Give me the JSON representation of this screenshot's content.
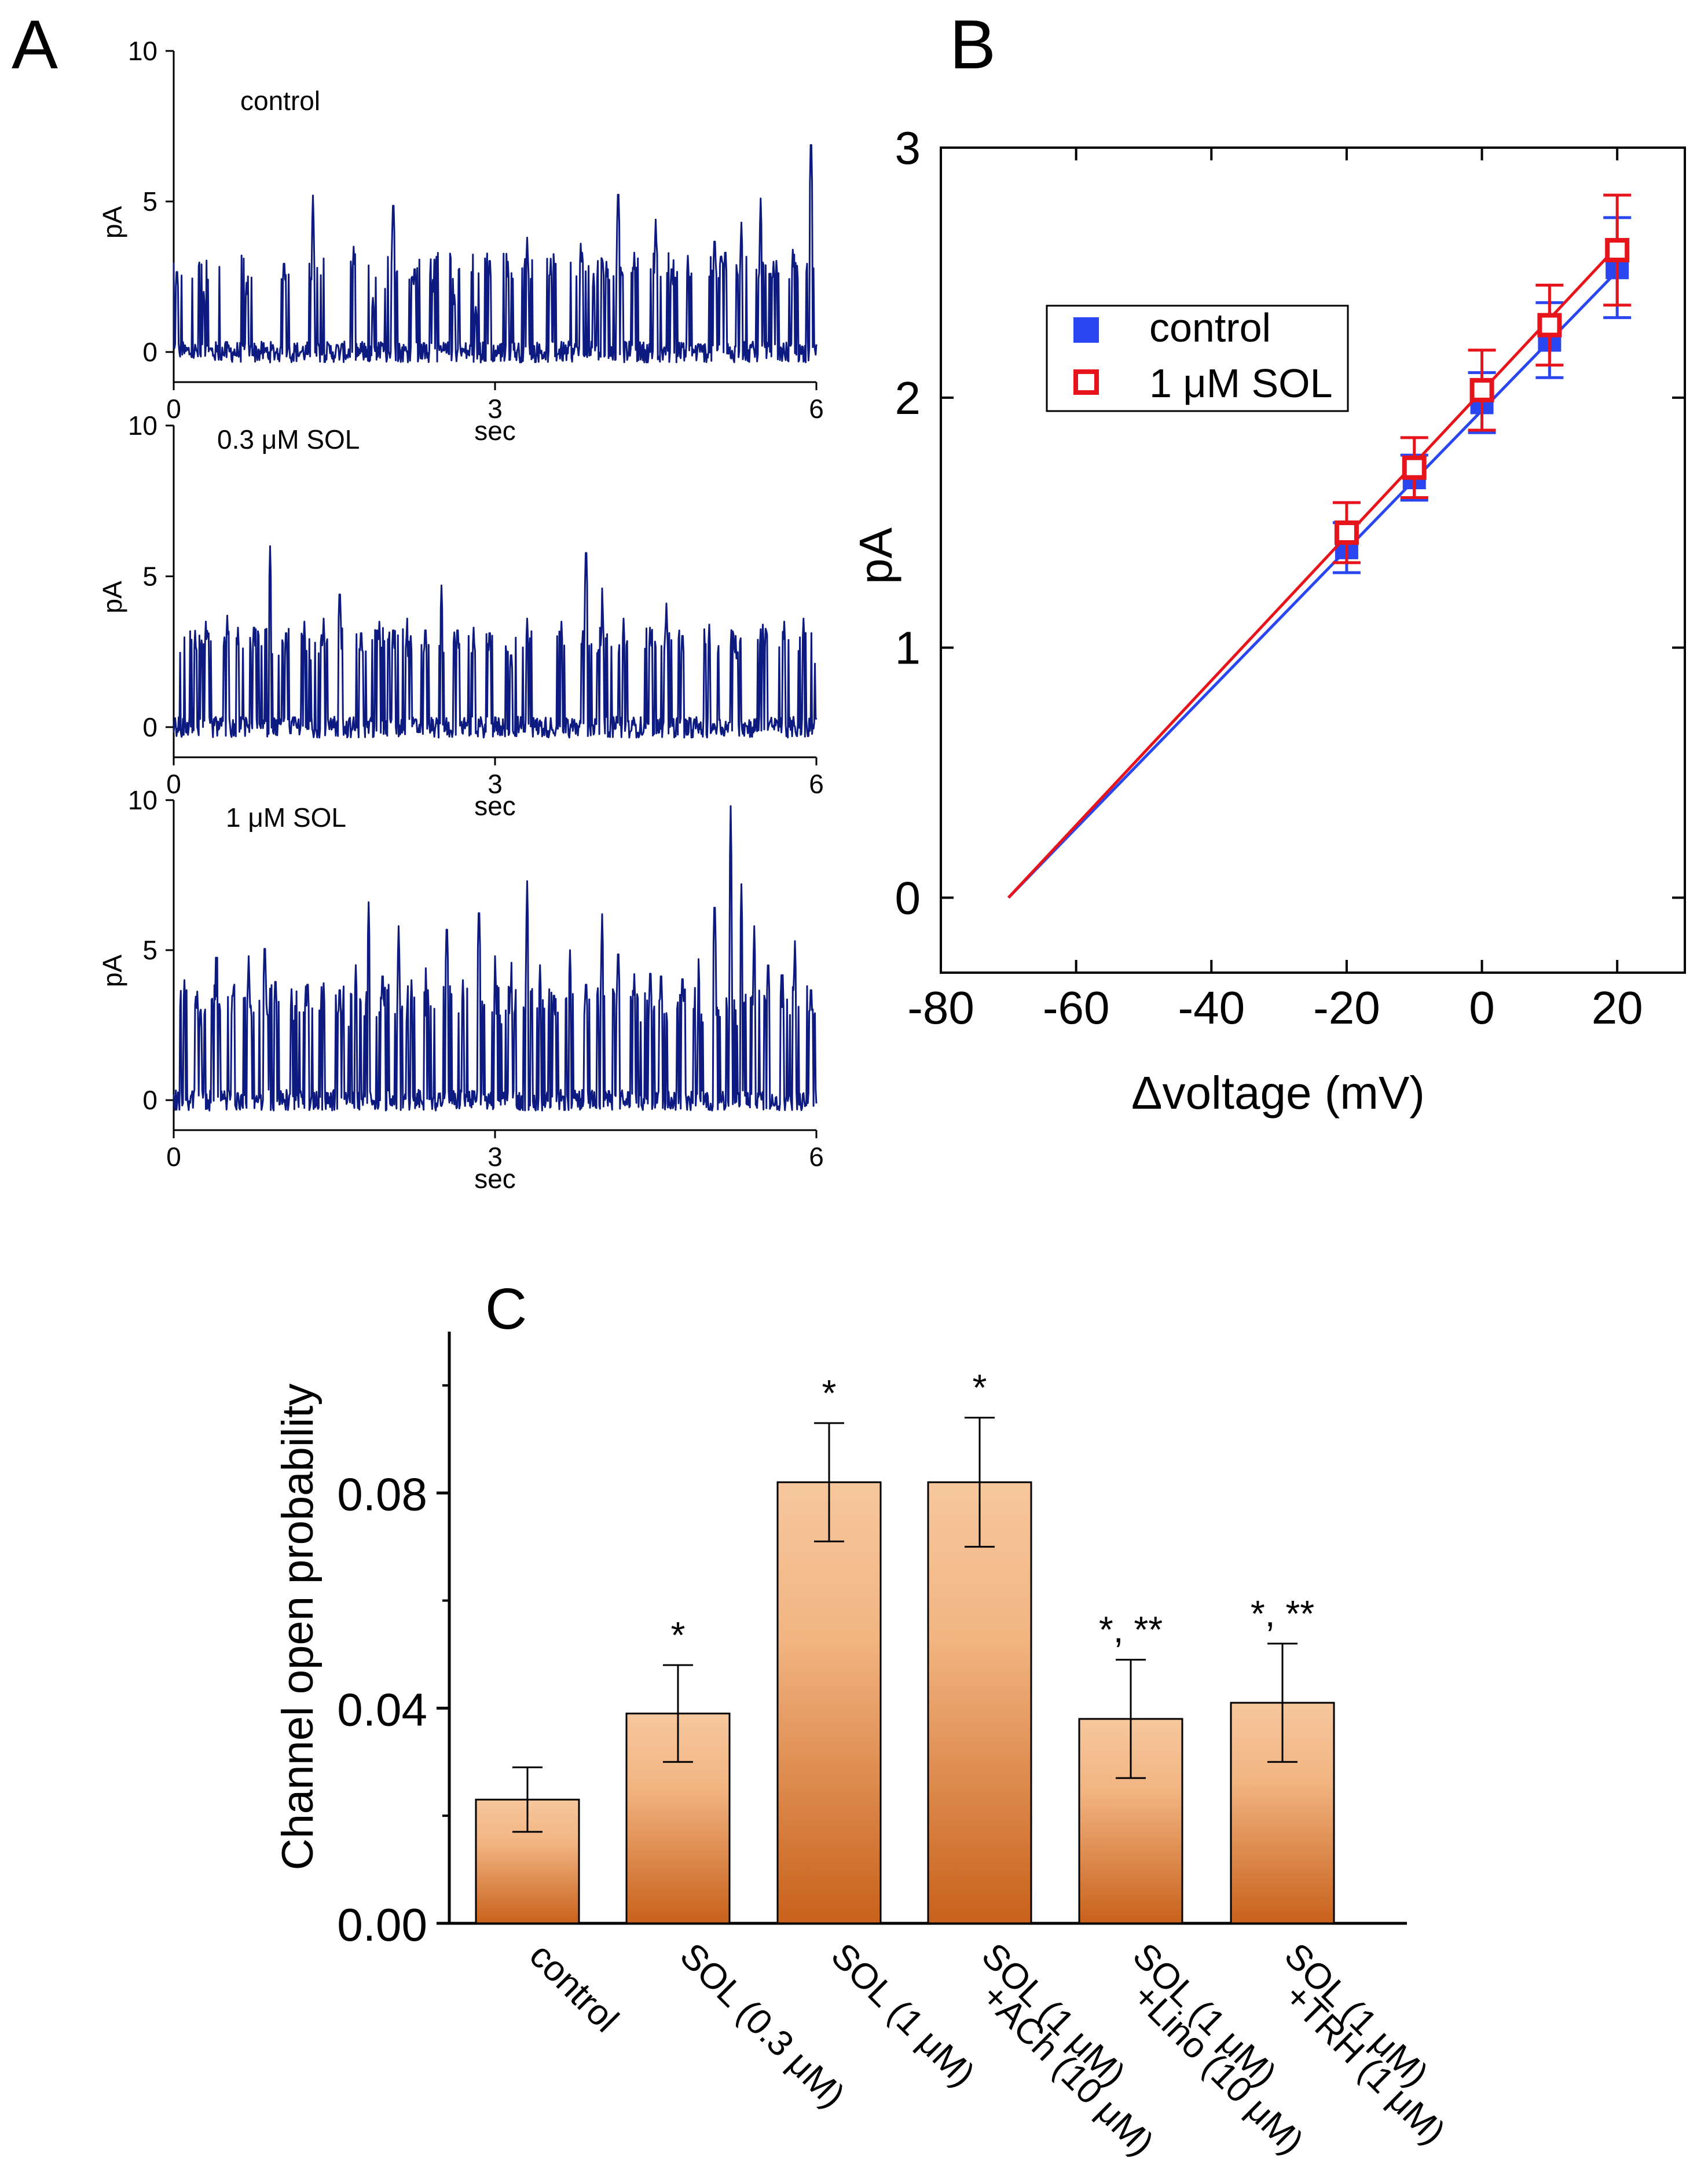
{
  "figure": {
    "panel_labels": {
      "a": "A",
      "b": "B",
      "c": "C"
    }
  },
  "colors": {
    "trace": "#0d1a80",
    "control": "#2a46f0",
    "sol": "#e8141c",
    "bar_top": "#f6c79d",
    "bar_bottom": "#c8611b",
    "axis": "#000000"
  },
  "chart_data": [
    {
      "id": "A",
      "type": "line",
      "subtype": "current-traces",
      "xlabel": "sec",
      "ylabel": "pA",
      "xlim": [
        0,
        6
      ],
      "ylim": [
        -1,
        10
      ],
      "xticks": [
        0,
        3,
        6
      ],
      "yticks": [
        0,
        5,
        10
      ],
      "traces": [
        {
          "label": "control",
          "baseline": 0,
          "open_level": 3,
          "open_probability": 0.023,
          "events": [
            [
              0.03,
              2.9
            ],
            [
              0.28,
              2.0
            ],
            [
              0.68,
              2.3
            ],
            [
              1.03,
              3.2
            ],
            [
              1.3,
              5.2
            ],
            [
              1.68,
              3.5
            ],
            [
              1.86,
              1.8
            ],
            [
              2.05,
              5.3
            ],
            [
              2.25,
              3.0
            ],
            [
              2.42,
              2.4
            ],
            [
              2.62,
              1.9
            ],
            [
              2.82,
              1.5
            ],
            [
              2.95,
              3.3
            ],
            [
              3.12,
              3.0
            ],
            [
              3.3,
              3.8
            ],
            [
              3.52,
              3.1
            ],
            [
              3.8,
              3.6
            ],
            [
              3.92,
              2.6
            ],
            [
              4.04,
              3.0
            ],
            [
              4.15,
              5.7
            ],
            [
              4.3,
              3.3
            ],
            [
              4.5,
              4.4
            ],
            [
              4.65,
              3.0
            ],
            [
              4.8,
              3.2
            ],
            [
              5.05,
              4.0
            ],
            [
              5.15,
              3.6
            ],
            [
              5.3,
              4.3
            ],
            [
              5.48,
              5.1
            ],
            [
              5.6,
              3.0
            ],
            [
              5.78,
              3.4
            ],
            [
              5.95,
              7.5
            ]
          ]
        },
        {
          "label": "0.3 μM SOL",
          "baseline": 0,
          "open_level": 3,
          "open_probability": 0.039,
          "events": [
            [
              0.2,
              3.2
            ],
            [
              0.3,
              3.5
            ],
            [
              0.5,
              3.7
            ],
            [
              0.6,
              3.3
            ],
            [
              0.75,
              3.6
            ],
            [
              0.9,
              6.0
            ],
            [
              1.05,
              3.4
            ],
            [
              1.22,
              3.5
            ],
            [
              1.4,
              3.6
            ],
            [
              1.55,
              4.8
            ],
            [
              1.75,
              3.4
            ],
            [
              1.92,
              3.5
            ],
            [
              2.05,
              3.5
            ],
            [
              2.18,
              3.6
            ],
            [
              2.35,
              3.5
            ],
            [
              2.5,
              4.7
            ],
            [
              2.65,
              3.5
            ],
            [
              2.8,
              3.3
            ],
            [
              2.95,
              3.4
            ],
            [
              3.15,
              2.6
            ],
            [
              3.3,
              3.6
            ],
            [
              3.62,
              3.5
            ],
            [
              3.85,
              6.3
            ],
            [
              4.0,
              4.6
            ],
            [
              4.2,
              3.6
            ],
            [
              4.45,
              3.6
            ],
            [
              4.6,
              4.1
            ],
            [
              4.75,
              3.3
            ],
            [
              5.0,
              3.4
            ],
            [
              5.25,
              3.3
            ],
            [
              5.5,
              3.4
            ],
            [
              5.7,
              3.5
            ],
            [
              5.88,
              3.6
            ]
          ]
        },
        {
          "label": "1 μM SOL",
          "baseline": 0,
          "open_level": 3.5,
          "open_probability": 0.082,
          "events": [
            [
              0.1,
              4.0
            ],
            [
              0.25,
              3.2
            ],
            [
              0.4,
              5.7
            ],
            [
              0.55,
              3.8
            ],
            [
              0.7,
              4.8
            ],
            [
              0.85,
              5.5
            ],
            [
              0.95,
              4.3
            ],
            [
              1.1,
              3.7
            ],
            [
              1.25,
              4.2
            ],
            [
              1.4,
              3.9
            ],
            [
              1.55,
              4.0
            ],
            [
              1.7,
              4.5
            ],
            [
              1.82,
              6.6
            ],
            [
              1.95,
              4.5
            ],
            [
              2.1,
              5.8
            ],
            [
              2.22,
              4.0
            ],
            [
              2.35,
              4.8
            ],
            [
              2.55,
              6.2
            ],
            [
              2.7,
              4.0
            ],
            [
              2.85,
              6.8
            ],
            [
              3.0,
              4.8
            ],
            [
              3.15,
              5.0
            ],
            [
              3.3,
              7.3
            ],
            [
              3.42,
              4.5
            ],
            [
              3.55,
              3.8
            ],
            [
              3.7,
              5.0
            ],
            [
              3.85,
              4.2
            ],
            [
              4.0,
              6.2
            ],
            [
              4.15,
              5.3
            ],
            [
              4.3,
              4.2
            ],
            [
              4.45,
              4.6
            ],
            [
              4.55,
              4.5
            ],
            [
              4.75,
              4.4
            ],
            [
              4.9,
              4.7
            ],
            [
              5.05,
              7.0
            ],
            [
              5.2,
              9.8
            ],
            [
              5.3,
              7.2
            ],
            [
              5.42,
              5.8
            ],
            [
              5.55,
              4.9
            ],
            [
              5.68,
              5.0
            ],
            [
              5.8,
              5.3
            ],
            [
              5.95,
              4.0
            ]
          ]
        }
      ]
    },
    {
      "id": "B",
      "type": "line",
      "subtype": "I-V relationship with error bars",
      "xlabel": "Δvoltage (mV)",
      "ylabel": "pA",
      "xlim": [
        -80,
        30
      ],
      "ylim": [
        -0.3,
        3.0
      ],
      "xticks": [
        -80,
        -60,
        -40,
        -20,
        0,
        20
      ],
      "yticks": [
        0,
        1,
        2,
        3
      ],
      "legend_position": "upper-left-inside",
      "series": [
        {
          "name": "control",
          "marker": "filled-square",
          "x": [
            -20,
            -10,
            0,
            10,
            20
          ],
          "y": [
            1.4,
            1.68,
            1.98,
            2.23,
            2.52
          ],
          "err": [
            0.1,
            0.09,
            0.12,
            0.15,
            0.2
          ],
          "fit": {
            "x": [
              -70,
              20
            ],
            "y": [
              0,
              2.52
            ]
          }
        },
        {
          "name": "1 μM SOL",
          "marker": "open-square",
          "x": [
            -20,
            -10,
            0,
            10,
            20
          ],
          "y": [
            1.46,
            1.72,
            2.03,
            2.29,
            2.59
          ],
          "err": [
            0.12,
            0.12,
            0.16,
            0.16,
            0.22
          ],
          "fit": {
            "x": [
              -70,
              20
            ],
            "y": [
              0,
              2.59
            ]
          }
        }
      ]
    },
    {
      "id": "C",
      "type": "bar",
      "xlabel": "",
      "ylabel": "Channel open probability",
      "ylim": [
        0,
        0.11
      ],
      "yticks": [
        0.0,
        0.04,
        0.08
      ],
      "ytick_labels": [
        "0.00",
        "0.04",
        "0.08"
      ],
      "categories": [
        [
          "control"
        ],
        [
          "SOL (0.3 μM)"
        ],
        [
          "SOL (1 μM)"
        ],
        [
          "SOL (1 μM)",
          "+ACh (10 μM)"
        ],
        [
          "SOL (1 μM)",
          "+Lino (10 μM)"
        ],
        [
          "SOL (1 μM)",
          "+TRH (1 μM)"
        ]
      ],
      "values": [
        0.023,
        0.039,
        0.082,
        0.082,
        0.038,
        0.041
      ],
      "errors": [
        0.006,
        0.009,
        0.011,
        0.012,
        0.011,
        0.011
      ],
      "annotations": [
        "",
        "*",
        "*",
        "*",
        "*, **",
        "*, **"
      ]
    }
  ]
}
